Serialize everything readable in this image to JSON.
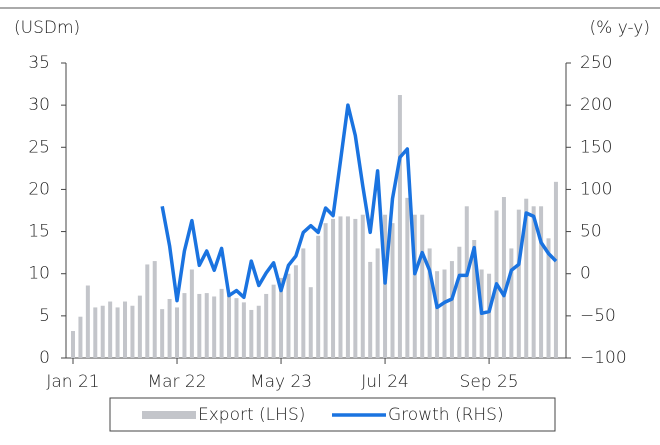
{
  "chart_data": {
    "type": "bar_line",
    "left_axis_label": "(USDm)",
    "right_axis_label": "(% y-y)",
    "categories": [
      "Jan 21",
      null,
      null,
      null,
      null,
      null,
      null,
      null,
      null,
      null,
      null,
      null,
      null,
      null,
      "Mar 22",
      null,
      null,
      null,
      null,
      null,
      null,
      null,
      null,
      null,
      null,
      null,
      null,
      null,
      "May 23",
      null,
      null,
      null,
      null,
      null,
      null,
      null,
      null,
      null,
      null,
      null,
      null,
      null,
      "Jul 24",
      null,
      null,
      null,
      null,
      null,
      null,
      null,
      null,
      null,
      null,
      null,
      null,
      null,
      "Sep 25",
      null,
      null,
      null,
      null,
      null,
      null,
      null,
      null,
      null
    ],
    "series": [
      {
        "name": "Export (LHS)",
        "color": "#c3c5ca",
        "axis": "y",
        "values": [
          3.2,
          4.9,
          8.6,
          6.0,
          6.2,
          6.7,
          6.0,
          6.7,
          6.2,
          7.4,
          11.1,
          11.5,
          5.8,
          7.0,
          6.0,
          7.7,
          10.5,
          7.6,
          7.7,
          7.3,
          8.2,
          7.6,
          7.1,
          6.6,
          5.7,
          6.2,
          7.6,
          8.7,
          9.5,
          10.0,
          11.0,
          13.0,
          8.4,
          14.5,
          16.0,
          16.5,
          16.8,
          16.8,
          16.5,
          17.0,
          11.4,
          13.0,
          17.0,
          16.0,
          31.2,
          19.0,
          17.0,
          17.0,
          13.0,
          10.3,
          10.5,
          11.5,
          13.2,
          18.0,
          14.0,
          10.5,
          10.0,
          17.5,
          19.1,
          13.0,
          17.6,
          18.9,
          18.0,
          18.0,
          14.2,
          20.9
        ]
      },
      {
        "name": "Growth (RHS)",
        "color": "#1a73e0",
        "axis": "y2",
        "values": [
          null,
          null,
          null,
          null,
          null,
          null,
          null,
          null,
          null,
          null,
          null,
          null,
          80,
          33,
          -32,
          27,
          63,
          10,
          27,
          4,
          30,
          -26,
          -20,
          -28,
          15,
          -14,
          1,
          13,
          -20,
          10,
          21,
          49,
          57,
          49,
          78,
          69,
          134,
          200,
          164,
          104,
          49,
          122,
          -11,
          89,
          138,
          148,
          0,
          25,
          4,
          -40,
          -34,
          -30,
          -2,
          -2,
          31,
          -47,
          -45,
          -12,
          -26,
          4,
          11,
          72,
          68,
          37,
          24,
          15
        ]
      }
    ],
    "ylim": [
      0,
      35
    ],
    "yticks": [
      0,
      5,
      10,
      15,
      20,
      25,
      30,
      35
    ],
    "y2lim": [
      -100,
      250
    ],
    "y2ticks": [
      {
        "value": -100,
        "label": "−100"
      },
      {
        "value": -50,
        "label": "−50"
      },
      0,
      50,
      100,
      150,
      200,
      250
    ],
    "legend": "bottom"
  }
}
